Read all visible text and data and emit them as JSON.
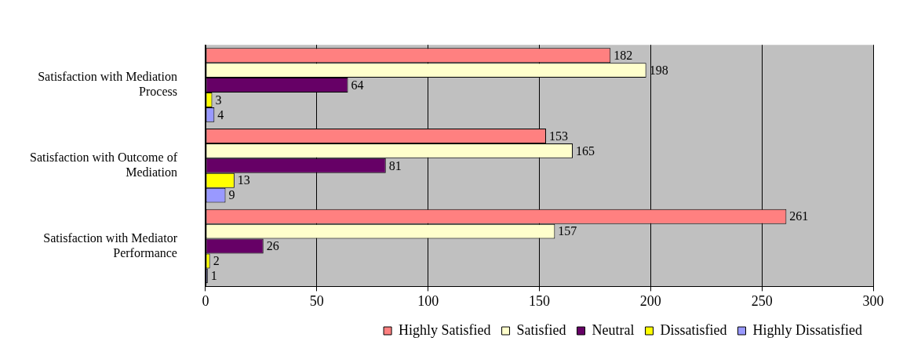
{
  "chart_data": {
    "type": "bar",
    "orientation": "horizontal",
    "categories": [
      "Satisfaction with Mediation Process",
      "Satisfaction with Outcome of Mediation",
      "Satisfaction with Mediator Performance"
    ],
    "series": [
      {
        "name": "Highly Satisfied",
        "color": "#ff8080",
        "values": [
          182,
          153,
          261
        ]
      },
      {
        "name": "Satisfied",
        "color": "#ffffcc",
        "values": [
          198,
          165,
          157
        ]
      },
      {
        "name": "Neutral",
        "color": "#660066",
        "values": [
          64,
          81,
          26
        ]
      },
      {
        "name": "Dissatisfied",
        "color": "#ffff00",
        "values": [
          3,
          13,
          2
        ]
      },
      {
        "name": "Highly Dissatisfied",
        "color": "#9999ff",
        "values": [
          4,
          9,
          1
        ]
      }
    ],
    "xlim": [
      0,
      300
    ],
    "xticks": [
      0,
      50,
      100,
      150,
      200,
      250,
      300
    ],
    "grid": "x",
    "legend": "bottom",
    "data_labels": true
  }
}
